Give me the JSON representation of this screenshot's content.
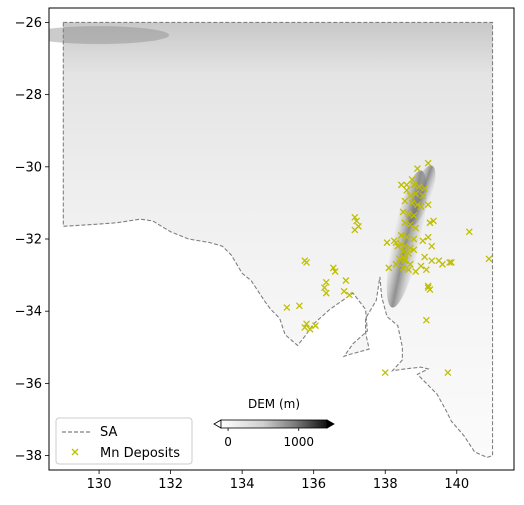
{
  "chart_data": {
    "type": "scatter",
    "xlim": [
      128.6,
      141.6
    ],
    "ylim": [
      -38.4,
      -25.6
    ],
    "xticks": [
      130,
      132,
      134,
      136,
      138,
      140
    ],
    "yticks": [
      -26,
      -28,
      -30,
      -32,
      -34,
      -36,
      -38
    ],
    "xtick_labels": [
      "130",
      "132",
      "134",
      "136",
      "138",
      "140"
    ],
    "ytick_labels": [
      "−26",
      "−28",
      "−30",
      "−32",
      "−34",
      "−36",
      "−38"
    ],
    "background": "DEM raster (greyscale)",
    "colorbar": {
      "title": "DEM (m)",
      "ticks": [
        0,
        1000
      ],
      "tick_labels": [
        "0",
        "1000"
      ],
      "range": [
        -100,
        1400
      ],
      "cmap": "Greys",
      "extend": "both",
      "placement": "lower-center"
    },
    "legend": {
      "placement": "lower-left",
      "entries": [
        {
          "label": "SA",
          "style": "dashed-line",
          "color": "#808080"
        },
        {
          "label": "Mn Deposits",
          "style": "x-marker",
          "color": "#bfbf00"
        }
      ]
    },
    "outline": {
      "name": "SA",
      "color": "#808080",
      "points": [
        [
          129.0,
          -26.0
        ],
        [
          141.0,
          -26.0
        ],
        [
          141.0,
          -38.0
        ],
        [
          140.85,
          -38.05
        ],
        [
          140.5,
          -37.9
        ],
        [
          140.2,
          -37.45
        ],
        [
          139.85,
          -37.05
        ],
        [
          139.7,
          -36.75
        ],
        [
          139.45,
          -36.3
        ],
        [
          139.1,
          -35.95
        ],
        [
          138.9,
          -35.75
        ],
        [
          139.2,
          -35.6
        ],
        [
          139.0,
          -35.55
        ],
        [
          138.55,
          -35.6
        ],
        [
          138.2,
          -35.65
        ],
        [
          138.48,
          -35.35
        ],
        [
          138.48,
          -35.0
        ],
        [
          138.35,
          -34.4
        ],
        [
          138.05,
          -34.15
        ],
        [
          137.9,
          -33.6
        ],
        [
          137.85,
          -33.05
        ],
        [
          137.75,
          -33.7
        ],
        [
          137.45,
          -34.2
        ],
        [
          137.45,
          -34.6
        ],
        [
          137.55,
          -35.05
        ],
        [
          137.0,
          -35.2
        ],
        [
          136.85,
          -35.25
        ],
        [
          137.1,
          -34.9
        ],
        [
          137.5,
          -34.55
        ],
        [
          137.45,
          -33.95
        ],
        [
          137.1,
          -33.5
        ],
        [
          136.45,
          -33.95
        ],
        [
          136.0,
          -34.35
        ],
        [
          135.75,
          -34.7
        ],
        [
          135.55,
          -34.95
        ],
        [
          135.2,
          -34.65
        ],
        [
          135.05,
          -34.2
        ],
        [
          134.8,
          -33.95
        ],
        [
          134.65,
          -33.75
        ],
        [
          134.25,
          -33.15
        ],
        [
          134.0,
          -32.95
        ],
        [
          133.7,
          -32.45
        ],
        [
          133.45,
          -32.2
        ],
        [
          133.1,
          -32.1
        ],
        [
          132.5,
          -32.0
        ],
        [
          132.0,
          -31.8
        ],
        [
          131.5,
          -31.5
        ],
        [
          131.15,
          -31.45
        ],
        [
          130.5,
          -31.55
        ],
        [
          129.8,
          -31.6
        ],
        [
          129.0,
          -31.65
        ]
      ]
    },
    "series": [
      {
        "name": "Mn Deposits",
        "marker": "x",
        "color": "#bfbf00",
        "x": [
          139.2,
          138.9,
          138.75,
          138.6,
          138.8,
          138.95,
          139.1,
          138.45,
          138.6,
          138.7,
          138.85,
          139.05,
          138.55,
          138.75,
          138.9,
          139.0,
          139.2,
          138.5,
          138.65,
          138.8,
          138.55,
          138.7,
          138.85,
          139.25,
          139.35,
          138.45,
          138.6,
          138.8,
          139.05,
          139.2,
          138.3,
          138.45,
          138.55,
          138.7,
          139.3,
          138.05,
          138.25,
          138.35,
          138.5,
          138.65,
          138.8,
          139.1,
          139.3,
          138.4,
          138.55,
          138.7,
          139.0,
          139.5,
          139.85,
          140.35,
          138.3,
          138.5,
          138.65,
          138.85,
          139.15,
          139.8,
          139.6,
          138.1,
          139.2,
          139.25,
          139.15,
          140.9,
          139.2,
          138.0,
          139.75,
          137.15,
          137.2,
          137.25,
          137.15,
          136.55,
          136.6,
          136.9,
          136.85,
          136.35,
          136.3,
          136.35,
          135.75,
          135.8,
          135.6,
          135.8,
          135.75,
          136.05,
          135.25,
          135.9,
          137.0,
          138.5,
          138.55
        ],
        "y": [
          -29.9,
          -30.05,
          -30.35,
          -30.5,
          -30.5,
          -30.55,
          -30.6,
          -30.5,
          -30.65,
          -30.8,
          -30.75,
          -30.8,
          -30.95,
          -31.0,
          -31.05,
          -31.1,
          -31.05,
          -31.25,
          -31.3,
          -31.35,
          -31.55,
          -31.6,
          -31.7,
          -31.55,
          -31.5,
          -31.9,
          -31.95,
          -32.0,
          -32.05,
          -31.95,
          -32.1,
          -32.15,
          -32.2,
          -32.25,
          -32.2,
          -32.1,
          -32.05,
          -32.2,
          -32.35,
          -32.4,
          -32.3,
          -32.5,
          -32.6,
          -32.55,
          -32.6,
          -32.7,
          -32.75,
          -32.6,
          -32.65,
          -31.8,
          -32.7,
          -32.8,
          -32.85,
          -32.9,
          -32.85,
          -32.65,
          -32.7,
          -32.8,
          -33.3,
          -33.4,
          -34.25,
          -32.55,
          -33.35,
          -35.7,
          -35.7,
          -31.4,
          -31.5,
          -31.65,
          -31.75,
          -32.8,
          -32.9,
          -33.15,
          -33.45,
          -33.2,
          -33.35,
          -33.5,
          -32.6,
          -32.65,
          -33.85,
          -34.35,
          -34.45,
          -34.4,
          -33.9,
          -34.5,
          -33.55,
          -32.5,
          -32.55
        ]
      }
    ]
  }
}
